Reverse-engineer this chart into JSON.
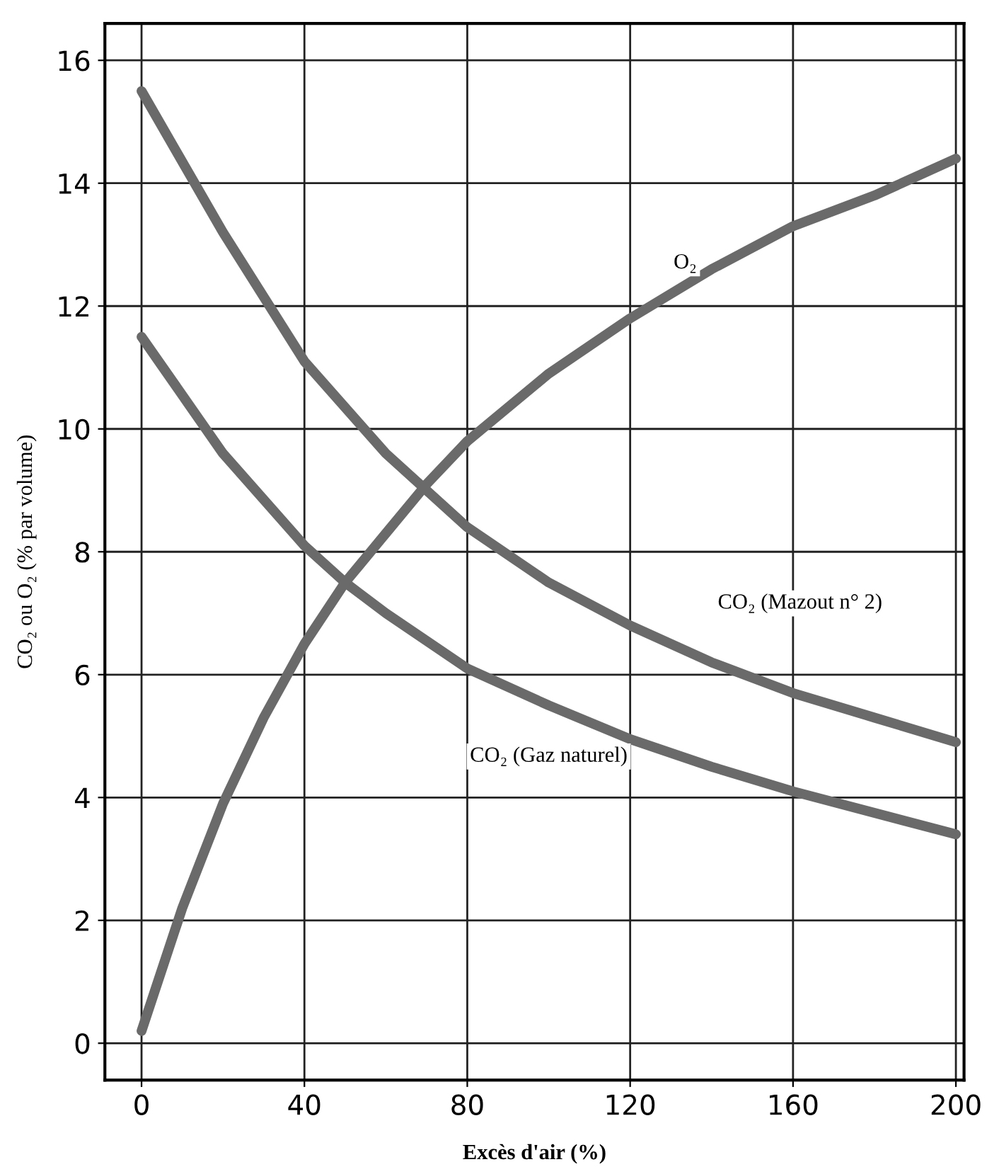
{
  "chart_data": {
    "type": "line",
    "xlabel": "Excès d'air (%)",
    "ylabel": "CO₂ ou O₂ (% par volume)",
    "xlim": [
      -9,
      202
    ],
    "ylim": [
      -0.6,
      16.6
    ],
    "xticks": [
      0,
      40,
      80,
      120,
      160,
      200
    ],
    "yticks": [
      0,
      2,
      4,
      6,
      8,
      10,
      12,
      14,
      16
    ],
    "grid": true,
    "marker": "none",
    "line_style": "solid",
    "series": [
      {
        "name": "CO₂ (Mazout n° 2)",
        "color": "#6a6a6a",
        "x": [
          0,
          20,
          40,
          60,
          80,
          100,
          120,
          140,
          160,
          180,
          200
        ],
        "values": [
          15.5,
          13.2,
          11.1,
          9.6,
          8.4,
          7.5,
          6.8,
          6.2,
          5.7,
          5.3,
          4.9
        ]
      },
      {
        "name": "CO₂ (Gaz naturel)",
        "color": "#6a6a6a",
        "x": [
          0,
          20,
          40,
          50,
          60,
          80,
          100,
          120,
          140,
          160,
          180,
          200
        ],
        "values": [
          11.5,
          9.6,
          8.1,
          7.5,
          7.0,
          6.1,
          5.5,
          4.95,
          4.5,
          4.1,
          3.75,
          3.4
        ]
      },
      {
        "name": "O₂",
        "color": "#6a6a6a",
        "x": [
          0,
          10,
          20,
          30,
          40,
          50,
          60,
          70,
          80,
          100,
          120,
          140,
          160,
          180,
          200
        ],
        "values": [
          0.2,
          2.2,
          3.9,
          5.3,
          6.5,
          7.5,
          8.3,
          9.1,
          9.8,
          10.9,
          11.8,
          12.6,
          13.3,
          13.8,
          14.4
        ]
      }
    ]
  }
}
